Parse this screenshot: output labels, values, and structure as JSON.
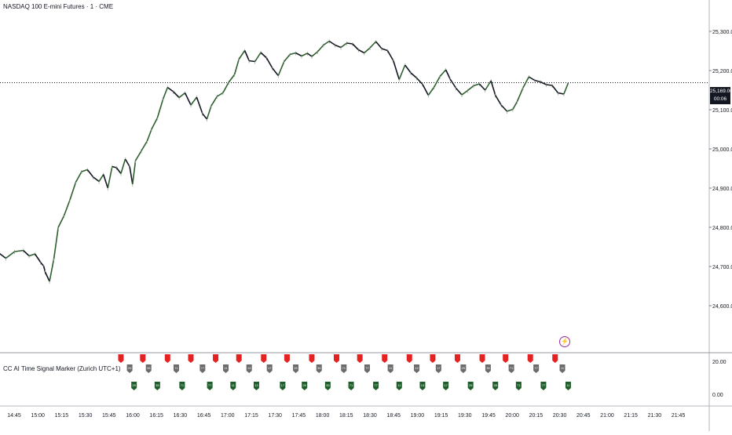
{
  "chart": {
    "symbol_title": "NASDAQ 100 E-mini Futures · 1 · CME",
    "last_price": "25,169.00",
    "countdown": "00:06",
    "price_ticks": [
      "25,300.00",
      "25,200.00",
      "25,100.00",
      "25,000.00",
      "24,900.00",
      "24,800.00",
      "24,700.00",
      "24,600.00"
    ],
    "time_ticks": [
      "14:45",
      "15:00",
      "15:15",
      "15:30",
      "15:45",
      "16:00",
      "16:15",
      "16:30",
      "16:45",
      "17:00",
      "17:15",
      "17:30",
      "17:45",
      "18:00",
      "18:15",
      "18:30",
      "18:45",
      "19:00",
      "19:15",
      "19:30",
      "19:45",
      "20:00",
      "20:15",
      "20:30",
      "20:45",
      "21:00",
      "21:15",
      "21:30",
      "21:45"
    ],
    "price_path": [
      [
        -29,
        24689
      ],
      [
        -25,
        24682
      ],
      [
        -20,
        24668
      ],
      [
        -17,
        24704
      ],
      [
        -12,
        24729
      ],
      [
        -6,
        24717
      ],
      [
        -1,
        24735
      ],
      [
        4,
        24721
      ],
      [
        10,
        24738
      ],
      [
        16,
        24741
      ],
      [
        20,
        24727
      ],
      [
        24,
        24732
      ],
      [
        28,
        24710
      ],
      [
        30,
        24701
      ],
      [
        31,
        24686
      ],
      [
        34,
        24662
      ],
      [
        37,
        24720
      ],
      [
        40,
        24800
      ],
      [
        44,
        24830
      ],
      [
        48,
        24870
      ],
      [
        52,
        24915
      ],
      [
        56,
        24942
      ],
      [
        60,
        24947
      ],
      [
        64,
        24928
      ],
      [
        68,
        24917
      ],
      [
        71,
        24935
      ],
      [
        74,
        24900
      ],
      [
        77,
        24955
      ],
      [
        80,
        24952
      ],
      [
        83,
        24937
      ],
      [
        86,
        24974
      ],
      [
        89,
        24955
      ],
      [
        91,
        24910
      ],
      [
        93,
        24970
      ],
      [
        97,
        24995
      ],
      [
        101,
        25020
      ],
      [
        104,
        25050
      ],
      [
        108,
        25079
      ],
      [
        112,
        25128
      ],
      [
        115,
        25157
      ],
      [
        119,
        25146
      ],
      [
        123,
        25131
      ],
      [
        127,
        25143
      ],
      [
        131,
        25112
      ],
      [
        135,
        25132
      ],
      [
        139,
        25090
      ],
      [
        142,
        25076
      ],
      [
        145,
        25110
      ],
      [
        149,
        25134
      ],
      [
        153,
        25143
      ],
      [
        157,
        25170
      ],
      [
        161,
        25190
      ],
      [
        164,
        25229
      ],
      [
        168,
        25251
      ],
      [
        171,
        25225
      ],
      [
        175,
        25223
      ],
      [
        179,
        25246
      ],
      [
        183,
        25232
      ],
      [
        187,
        25206
      ],
      [
        191,
        25187
      ],
      [
        195,
        25223
      ],
      [
        199,
        25241
      ],
      [
        203,
        25245
      ],
      [
        207,
        25237
      ],
      [
        211,
        25244
      ],
      [
        214,
        25236
      ],
      [
        218,
        25248
      ],
      [
        222,
        25265
      ],
      [
        226,
        25275
      ],
      [
        230,
        25265
      ],
      [
        234,
        25259
      ],
      [
        238,
        25270
      ],
      [
        242,
        25268
      ],
      [
        246,
        25253
      ],
      [
        250,
        25245
      ],
      [
        254,
        25258
      ],
      [
        258,
        25274
      ],
      [
        262,
        25256
      ],
      [
        266,
        25251
      ],
      [
        270,
        25225
      ],
      [
        274,
        25177
      ],
      [
        278,
        25214
      ],
      [
        282,
        25194
      ],
      [
        286,
        25181
      ],
      [
        290,
        25165
      ],
      [
        294,
        25137
      ],
      [
        298,
        25158
      ],
      [
        302,
        25185
      ],
      [
        306,
        25202
      ],
      [
        309,
        25178
      ],
      [
        313,
        25155
      ],
      [
        317,
        25138
      ],
      [
        321,
        25149
      ],
      [
        325,
        25161
      ],
      [
        329,
        25166
      ],
      [
        333,
        25150
      ],
      [
        337,
        25174
      ],
      [
        340,
        25137
      ],
      [
        344,
        25112
      ],
      [
        348,
        25096
      ],
      [
        352,
        25101
      ],
      [
        355,
        25121
      ],
      [
        359,
        25156
      ],
      [
        363,
        25184
      ],
      [
        367,
        25175
      ],
      [
        371,
        25171
      ],
      [
        375,
        25164
      ],
      [
        379,
        25162
      ],
      [
        383,
        25143
      ],
      [
        387,
        25140
      ],
      [
        390,
        25168
      ]
    ],
    "signals": {
      "top_red": [
        83,
        98,
        115,
        131,
        148,
        164,
        181,
        197,
        214,
        231,
        247,
        264,
        281,
        297,
        314,
        331,
        347,
        364,
        381
      ],
      "mid_gray": [
        89,
        102,
        121,
        139,
        155,
        171,
        185,
        203,
        219,
        236,
        252,
        268,
        286,
        301,
        318,
        335,
        351,
        368,
        386
      ],
      "bottom_green": [
        92,
        108,
        125,
        144,
        160,
        176,
        194,
        209,
        225,
        241,
        258,
        274,
        290,
        306,
        323,
        340,
        356,
        373,
        390
      ],
      "badge_labels": [
        "29",
        "35",
        "71",
        "77",
        "11",
        "13",
        "17"
      ]
    }
  },
  "indicator": {
    "title": "CC AI Time Signal Marker (Zurich UTC+1)",
    "scale_top": "20.00",
    "scale_bottom": "0.00"
  },
  "colors": {
    "up_wick": "#2e5f2e",
    "down": "#131722",
    "signal_red": "#e52222",
    "signal_gray": "#6b6b6b",
    "signal_green": "#1e5e2a",
    "axis_text": "#131722",
    "grid_line": "#d1d4dc"
  }
}
